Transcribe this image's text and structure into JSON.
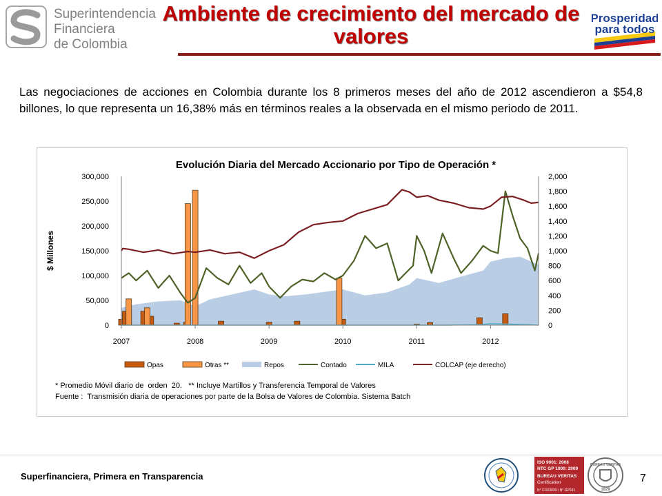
{
  "header": {
    "org_lines": [
      "Superintendencia",
      "Financiera",
      "de Colombia"
    ],
    "title_line1": "Ambiente de crecimiento del mercado de",
    "title_line2": "valores",
    "right_logo_lines": [
      "Prosperidad",
      "para todos"
    ],
    "colors": {
      "title": "#c00000",
      "rule": "#8b1a1a",
      "logo_gray": "#7f7f7f"
    }
  },
  "intro_text": "Las negociaciones de acciones en Colombia durante los 8 primeros meses del año de 2012 ascendieron a $54,8 billones, lo que representa un 16,38% más en términos reales a la observada en el mismo periodo de 2011.",
  "chart_data": {
    "type": "area",
    "title": "Evolución Diaria del Mercado  Accionario por Tipo de Operación *",
    "ylabel": "$ Millones",
    "y_left_ticks": [
      "300,000",
      "250,000",
      "200,000",
      "150,000",
      "100,000",
      "50,000",
      "0"
    ],
    "y_right_ticks": [
      "2,000",
      "1,800",
      "1,600",
      "1,400",
      "1,200",
      "1,000",
      "800",
      "600",
      "400",
      "200",
      "0"
    ],
    "x_ticks": [
      "2007",
      "2008",
      "2009",
      "2010",
      "2011",
      "2012"
    ],
    "ylim_left": [
      0,
      300000
    ],
    "ylim_right": [
      0,
      2000
    ],
    "xlim": [
      2007.0,
      2012.65
    ],
    "legend_position": "bottom",
    "series": [
      {
        "name": "Opas",
        "type": "bar",
        "axis": "left",
        "color": "#c55a11",
        "x": [
          2007.0,
          2007.05,
          2007.1,
          2007.3,
          2007.4,
          2007.75,
          2007.88,
          2008.35,
          2009.0,
          2009.38,
          2010.0,
          2011.0,
          2011.18,
          2011.85,
          2012.2
        ],
        "y": [
          12000,
          28000,
          30000,
          28000,
          18000,
          4000,
          6000,
          8000,
          6000,
          8000,
          12000,
          2000,
          5000,
          15000,
          23000
        ]
      },
      {
        "name": "Otras **",
        "type": "bar",
        "axis": "left",
        "color": "#f79646",
        "x": [
          2007.1,
          2007.35,
          2007.9,
          2008.0,
          2009.95
        ],
        "y": [
          53000,
          35000,
          245000,
          272000,
          95000
        ]
      },
      {
        "name": "Repos",
        "type": "area",
        "axis": "left",
        "color": "#b9cde5",
        "x": [
          2007.0,
          2007.2,
          2007.5,
          2007.8,
          2008.0,
          2008.2,
          2008.5,
          2008.8,
          2009.0,
          2009.2,
          2009.5,
          2009.8,
          2010.0,
          2010.3,
          2010.6,
          2010.9,
          2011.0,
          2011.3,
          2011.6,
          2011.9,
          2012.0,
          2012.2,
          2012.4,
          2012.65
        ],
        "y": [
          35000,
          42000,
          48000,
          50000,
          38000,
          52000,
          62000,
          72000,
          62000,
          58000,
          62000,
          68000,
          72000,
          60000,
          66000,
          82000,
          95000,
          85000,
          98000,
          110000,
          128000,
          135000,
          138000,
          122000
        ]
      },
      {
        "name": "Contado",
        "type": "line",
        "axis": "left",
        "color": "#4f6228",
        "x": [
          2007.0,
          2007.1,
          2007.2,
          2007.35,
          2007.5,
          2007.65,
          2007.8,
          2007.9,
          2008.0,
          2008.15,
          2008.3,
          2008.45,
          2008.6,
          2008.75,
          2008.9,
          2009.0,
          2009.15,
          2009.3,
          2009.45,
          2009.6,
          2009.75,
          2009.9,
          2010.0,
          2010.15,
          2010.3,
          2010.45,
          2010.6,
          2010.75,
          2010.85,
          2010.95,
          2011.0,
          2011.1,
          2011.2,
          2011.35,
          2011.5,
          2011.6,
          2011.75,
          2011.9,
          2012.0,
          2012.1,
          2012.2,
          2012.3,
          2012.4,
          2012.5,
          2012.6,
          2012.65
        ],
        "y": [
          95000,
          105000,
          90000,
          110000,
          75000,
          100000,
          65000,
          45000,
          55000,
          115000,
          95000,
          82000,
          120000,
          85000,
          105000,
          78000,
          55000,
          78000,
          92000,
          88000,
          105000,
          92000,
          100000,
          130000,
          180000,
          155000,
          165000,
          90000,
          105000,
          120000,
          180000,
          150000,
          105000,
          185000,
          135000,
          105000,
          130000,
          160000,
          150000,
          145000,
          270000,
          220000,
          175000,
          155000,
          110000,
          145000
        ]
      },
      {
        "name": "MILA",
        "type": "line",
        "axis": "left",
        "color": "#4bacc6",
        "x": [
          2007.0,
          2011.4,
          2011.9,
          2012.0,
          2012.5,
          2012.65
        ],
        "y": [
          0,
          0,
          1000,
          3000,
          1000,
          0
        ]
      },
      {
        "name": "COLCAP (eje derecho)",
        "type": "line",
        "axis": "right",
        "color": "#7b2024",
        "x": [
          2007.0,
          2007.02,
          2007.1,
          2007.3,
          2007.5,
          2007.7,
          2007.9,
          2008.0,
          2008.2,
          2008.4,
          2008.6,
          2008.8,
          2009.0,
          2009.2,
          2009.4,
          2009.6,
          2009.8,
          2010.0,
          2010.2,
          2010.4,
          2010.6,
          2010.8,
          2010.9,
          2011.0,
          2011.15,
          2011.3,
          2011.5,
          2011.7,
          2011.9,
          2012.0,
          2012.15,
          2012.3,
          2012.45,
          2012.55,
          2012.65
        ],
        "y": [
          1000,
          1030,
          1020,
          980,
          1010,
          960,
          990,
          980,
          1010,
          960,
          980,
          900,
          1000,
          1080,
          1250,
          1350,
          1380,
          1400,
          1500,
          1560,
          1620,
          1820,
          1790,
          1720,
          1740,
          1680,
          1640,
          1580,
          1560,
          1600,
          1720,
          1730,
          1680,
          1640,
          1650
        ]
      }
    ]
  },
  "notes": {
    "line1_part1": "* Promedio Móvil diario de  orden  20.",
    "line1_part2": "** Incluye Martillos y Transferencia Temporal de Valores",
    "line2": "Fuente :  Transmisión diaria de operaciones por parte de la Bolsa de Valores de Colombia. Sistema Batch"
  },
  "footer": {
    "slogan": "Superfinanciera, Primera en Transparencia",
    "page_number": "7",
    "cert_lines": [
      "ISO 9001: 2008",
      "NTC GP 1000: 2009",
      "BUREAU VERITAS",
      "Certification",
      "N° CO23039 / N° GP031"
    ],
    "bv_lines": [
      "BUREAU VERITAS",
      "1828"
    ]
  }
}
